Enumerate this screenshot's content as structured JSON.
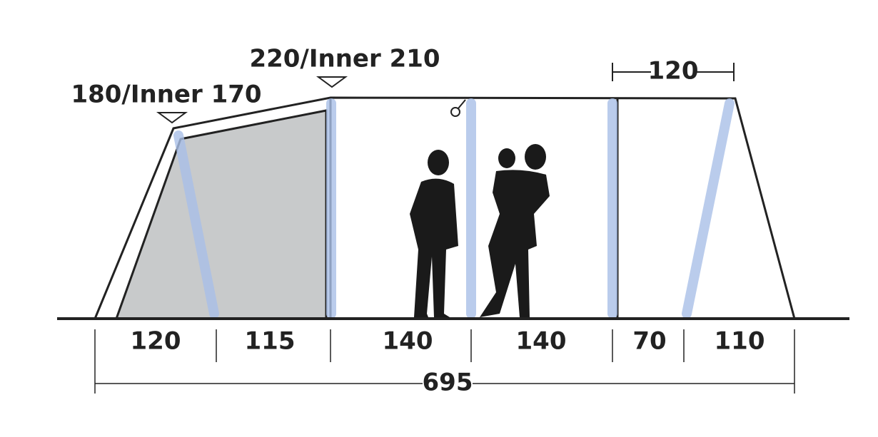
{
  "heights": [
    {
      "label": "180/Inner 170"
    },
    {
      "label": "220/Inner 210"
    }
  ],
  "top_width": 120,
  "segments": [
    120,
    115,
    140,
    140,
    70,
    110
  ],
  "total_length": 695
}
